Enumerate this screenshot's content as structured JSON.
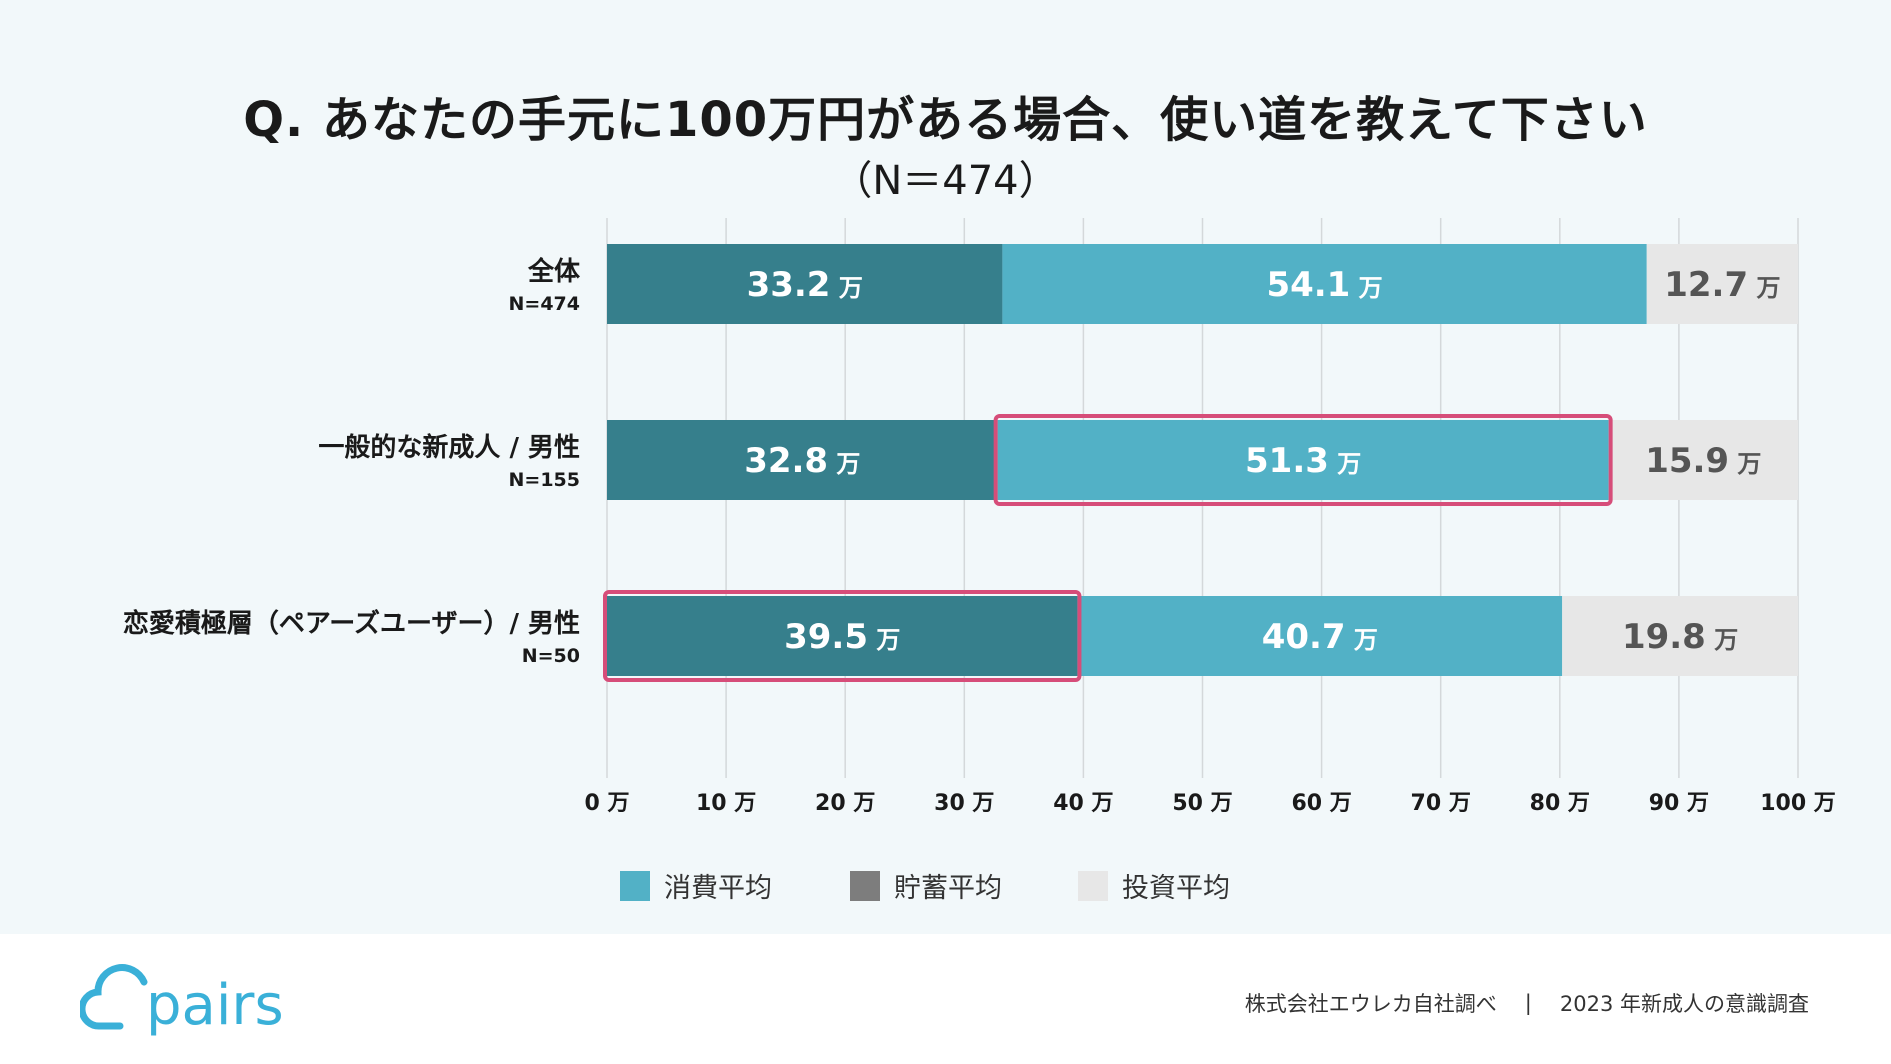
{
  "header": {
    "title": "Q. あなたの手元に100万円がある場合、使い道を教えて下さい",
    "subtitle": "（N＝474）"
  },
  "colors": {
    "savings": "#367f8c",
    "spending": "#52b1c6",
    "investment": "#e7e7e7",
    "highlight": "#d64d79",
    "legend_savings": "#7d7d7d",
    "logo": "#3ab0d8"
  },
  "chart_data": {
    "type": "stacked-bar-horizontal",
    "unit": "万",
    "xlim": [
      0,
      100
    ],
    "xticks": [
      0,
      10,
      20,
      30,
      40,
      50,
      60,
      70,
      80,
      90,
      100
    ],
    "tick_labels": [
      "0 万",
      "10 万",
      "20 万",
      "30 万",
      "40 万",
      "50 万",
      "60 万",
      "70 万",
      "80 万",
      "90 万",
      "100 万"
    ],
    "categories": [
      {
        "label": "全体",
        "n": "N=474"
      },
      {
        "label": "一般的な新成人 / 男性",
        "n": "N=155"
      },
      {
        "label": "恋愛積極層（ペアーズユーザー）/ 男性",
        "n": "N=50"
      }
    ],
    "series": [
      {
        "name": "貯蓄平均",
        "key": "savings",
        "values": [
          33.2,
          32.8,
          39.5
        ],
        "labels": [
          "33.2",
          "32.8",
          "39.5"
        ]
      },
      {
        "name": "消費平均",
        "key": "spending",
        "values": [
          54.1,
          51.3,
          40.7
        ],
        "labels": [
          "54.1",
          "51.3",
          "40.7"
        ]
      },
      {
        "name": "投資平均",
        "key": "investment",
        "values": [
          12.7,
          15.9,
          19.8
        ],
        "labels": [
          "12.7",
          "15.9",
          "19.8"
        ]
      }
    ],
    "highlights": [
      {
        "category": 1,
        "series": "spending"
      },
      {
        "category": 2,
        "series": "savings"
      }
    ]
  },
  "legend": [
    {
      "label": "消費平均",
      "color_key": "spending"
    },
    {
      "label": "貯蓄平均",
      "color_key": "legend_savings"
    },
    {
      "label": "投資平均",
      "color_key": "investment"
    }
  ],
  "footer": {
    "logo_text": "pairs",
    "source": "株式会社エウレカ自社調べ",
    "separator": "|",
    "survey": "2023 年新成人の意識調査"
  }
}
